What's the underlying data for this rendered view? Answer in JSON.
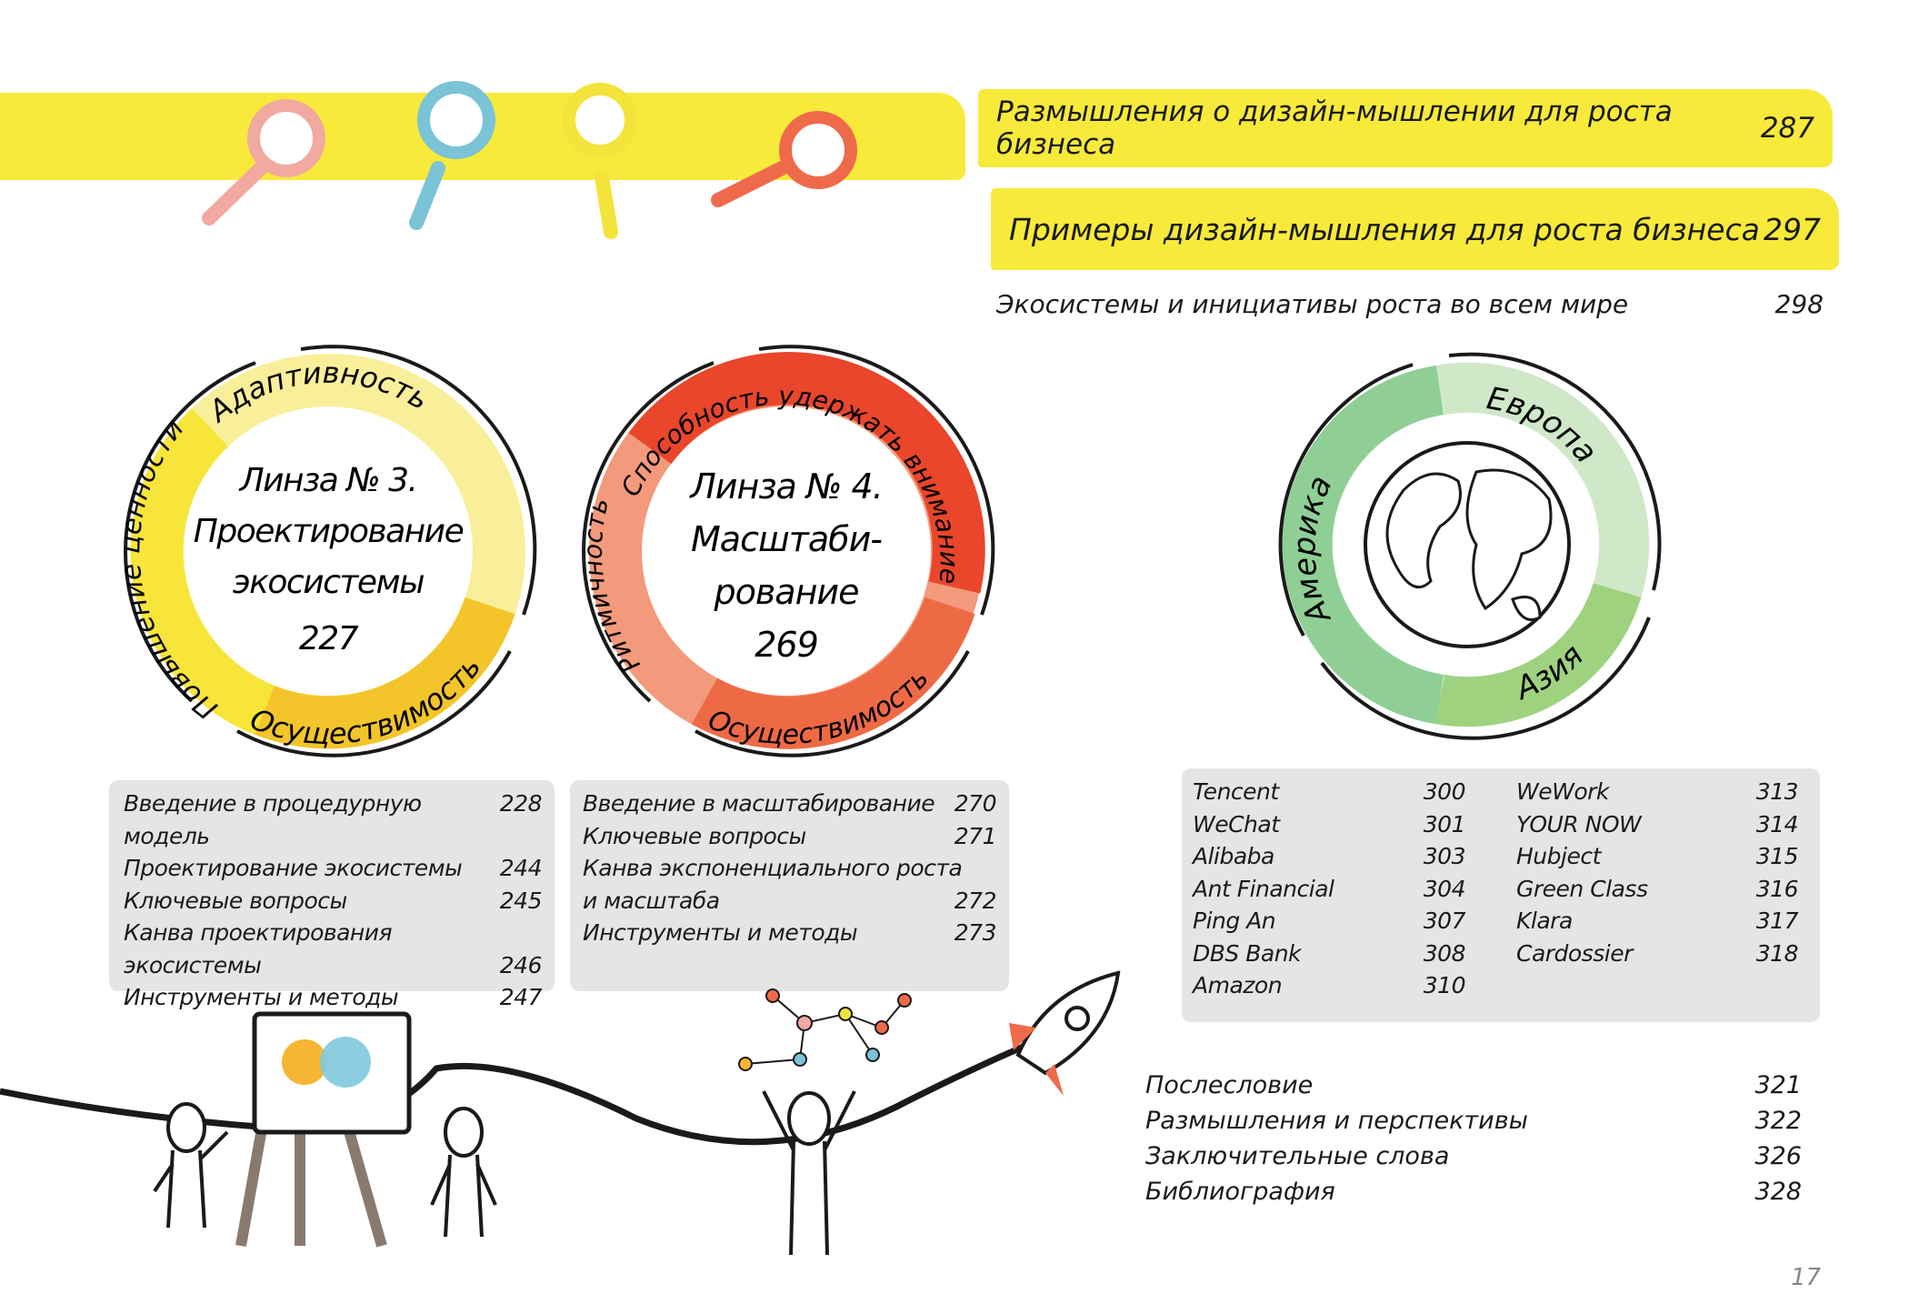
{
  "chapters": [
    {
      "title": "Размышления о дизайн-мышлении для роста бизнеса",
      "page": "287"
    },
    {
      "title": "Примеры дизайн-мышления для роста бизнеса",
      "page": "297"
    }
  ],
  "section": {
    "title": "Экосистемы и инициативы роста во всем мире",
    "page": "298"
  },
  "lens3": {
    "title_line1": "Линза № 3.",
    "title_line2": "Проектирование",
    "title_line3": "экосистемы",
    "page": "227",
    "ring_labels": [
      "Адаптивность",
      "Осуществимость",
      "Повышение ценности"
    ],
    "colors": [
      "#f9ef9a",
      "#f3c52a",
      "#f7e53a"
    ],
    "items": [
      {
        "title": "Введение в процедурную модель",
        "page": "228"
      },
      {
        "title": "Проектирование экосистемы",
        "page": "244"
      },
      {
        "title": "Ключевые вопросы",
        "page": "245"
      },
      {
        "title": "Канва проектирования",
        "page": ""
      },
      {
        "title": "экосистемы",
        "page": "246"
      },
      {
        "title": "Инструменты и методы",
        "page": "247"
      }
    ]
  },
  "lens4": {
    "title_line1": "Линза № 4.",
    "title_line2": "Масштаби-",
    "title_line3": "рование",
    "page": "269",
    "ring_labels": [
      "Способность удержать внимание",
      "Осуществимость",
      "Ритмичность"
    ],
    "colors": [
      "#e9462b",
      "#ee6a45",
      "#f39a7c"
    ],
    "items": [
      {
        "title": "Введение в масштабирование",
        "page": "270"
      },
      {
        "title": "Ключевые вопросы",
        "page": "271"
      },
      {
        "title": "Канва экспоненциального роста",
        "page": ""
      },
      {
        "title": "и масштаба",
        "page": "272"
      },
      {
        "title": "Инструменты и методы",
        "page": "273"
      }
    ]
  },
  "globe": {
    "ring_labels": [
      "Европа",
      "Азия",
      "Америка"
    ],
    "colors": [
      "#cfe8c8",
      "#9fd27f",
      "#8fcf95"
    ],
    "companies_left": [
      {
        "name": "Tencent",
        "page": "300"
      },
      {
        "name": "WeChat",
        "page": "301"
      },
      {
        "name": "Alibaba",
        "page": "303"
      },
      {
        "name": "Ant Financial",
        "page": "304"
      },
      {
        "name": "Ping An",
        "page": "307"
      },
      {
        "name": "DBS Bank",
        "page": "308"
      },
      {
        "name": "Amazon",
        "page": "310"
      }
    ],
    "companies_right": [
      {
        "name": "WeWork",
        "page": "313"
      },
      {
        "name": "YOUR NOW",
        "page": "314"
      },
      {
        "name": "Hubject",
        "page": "315"
      },
      {
        "name": "Green Class",
        "page": "316"
      },
      {
        "name": "Klara",
        "page": "317"
      },
      {
        "name": "Cardossier",
        "page": "318"
      }
    ]
  },
  "closing": [
    {
      "title": "Послесловие",
      "page": "321"
    },
    {
      "title": "Размышления и перспективы",
      "page": "322"
    },
    {
      "title": "Заключительные слова",
      "page": "326"
    },
    {
      "title": "Библиография",
      "page": "328"
    }
  ],
  "page_number": "17",
  "accent_yellow": "#f7ea3a",
  "box_gray": "#e4e5e7"
}
